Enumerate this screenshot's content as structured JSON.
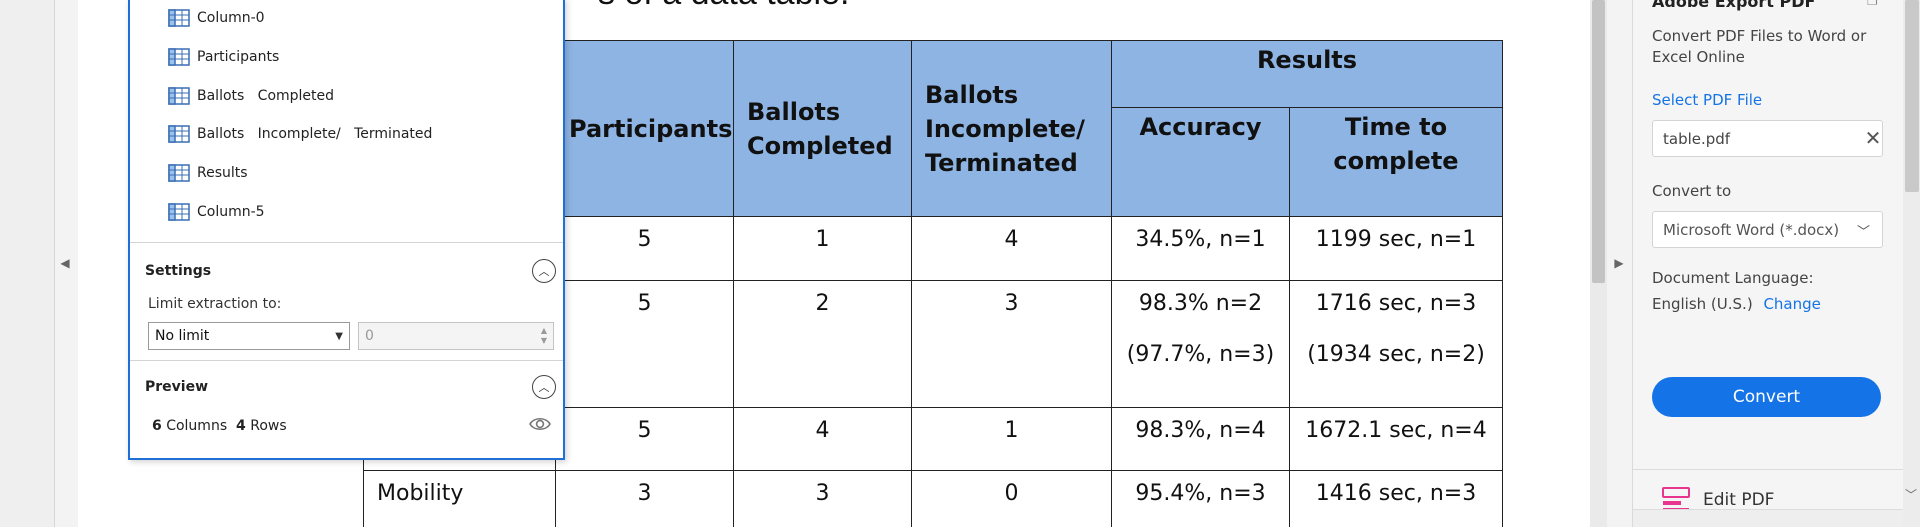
{
  "document": {
    "heading": "s of a data table.",
    "table": {
      "header_row1": [
        "",
        "Participants",
        "Ballots Completed",
        "Ballots Incomplete/ Terminated",
        "Results"
      ],
      "header_row2": [
        "Accuracy",
        "Time to complete"
      ],
      "rows": [
        {
          "cells": [
            "",
            "5",
            "1",
            "4",
            "34.5%, n=1",
            "1199 sec, n=1"
          ]
        },
        {
          "cells": [
            "",
            "5",
            "2",
            "3",
            "98.3% n=2",
            "1716 sec, n=3"
          ],
          "extra": [
            "(97.7%, n=3)",
            "(1934 sec, n=2)"
          ]
        },
        {
          "cells": [
            "",
            "5",
            "4",
            "1",
            "98.3%, n=4",
            "1672.1 sec, n=4"
          ]
        },
        {
          "cells": [
            "Mobility",
            "3",
            "3",
            "0",
            "95.4%, n=3",
            "1416 sec, n=3"
          ]
        }
      ]
    }
  },
  "extraction_panel": {
    "columns": [
      {
        "label": "Column-0",
        "icon": "table-column-icon"
      },
      {
        "label": "Participants",
        "icon": "table-column-icon"
      },
      {
        "label": "Ballots   Completed",
        "icon": "table-column-icon"
      },
      {
        "label": "Ballots   Incomplete/   Terminated",
        "icon": "table-column-icon"
      },
      {
        "label": "Results",
        "icon": "table-column-icon"
      },
      {
        "label": "Column-5",
        "icon": "table-column-icon"
      }
    ],
    "settings": {
      "title": "Settings",
      "limit_label": "Limit extraction to:",
      "limit_select": "No limit",
      "limit_value": "0"
    },
    "preview": {
      "title": "Preview",
      "columns_count": "6",
      "columns_word": "Columns",
      "rows_count": "4",
      "rows_word": "Rows"
    }
  },
  "sidebar": {
    "title": "Adobe Export PDF",
    "description": "Convert PDF Files to Word or Excel Online",
    "select_file": "Select PDF File",
    "file_name": "table.pdf",
    "convert_to_label": "Convert to",
    "format": "Microsoft Word (*.docx)",
    "language_label": "Document Language:",
    "language_value": "English (U.S.)",
    "change_link": "Change",
    "convert_button": "Convert",
    "edit_pdf": "Edit PDF"
  },
  "colors": {
    "header_fill": "#8eb4e3",
    "accent": "#1473e6",
    "panel_border": "#1f6fd6",
    "edit_pdf_icon": "#e8368f"
  }
}
